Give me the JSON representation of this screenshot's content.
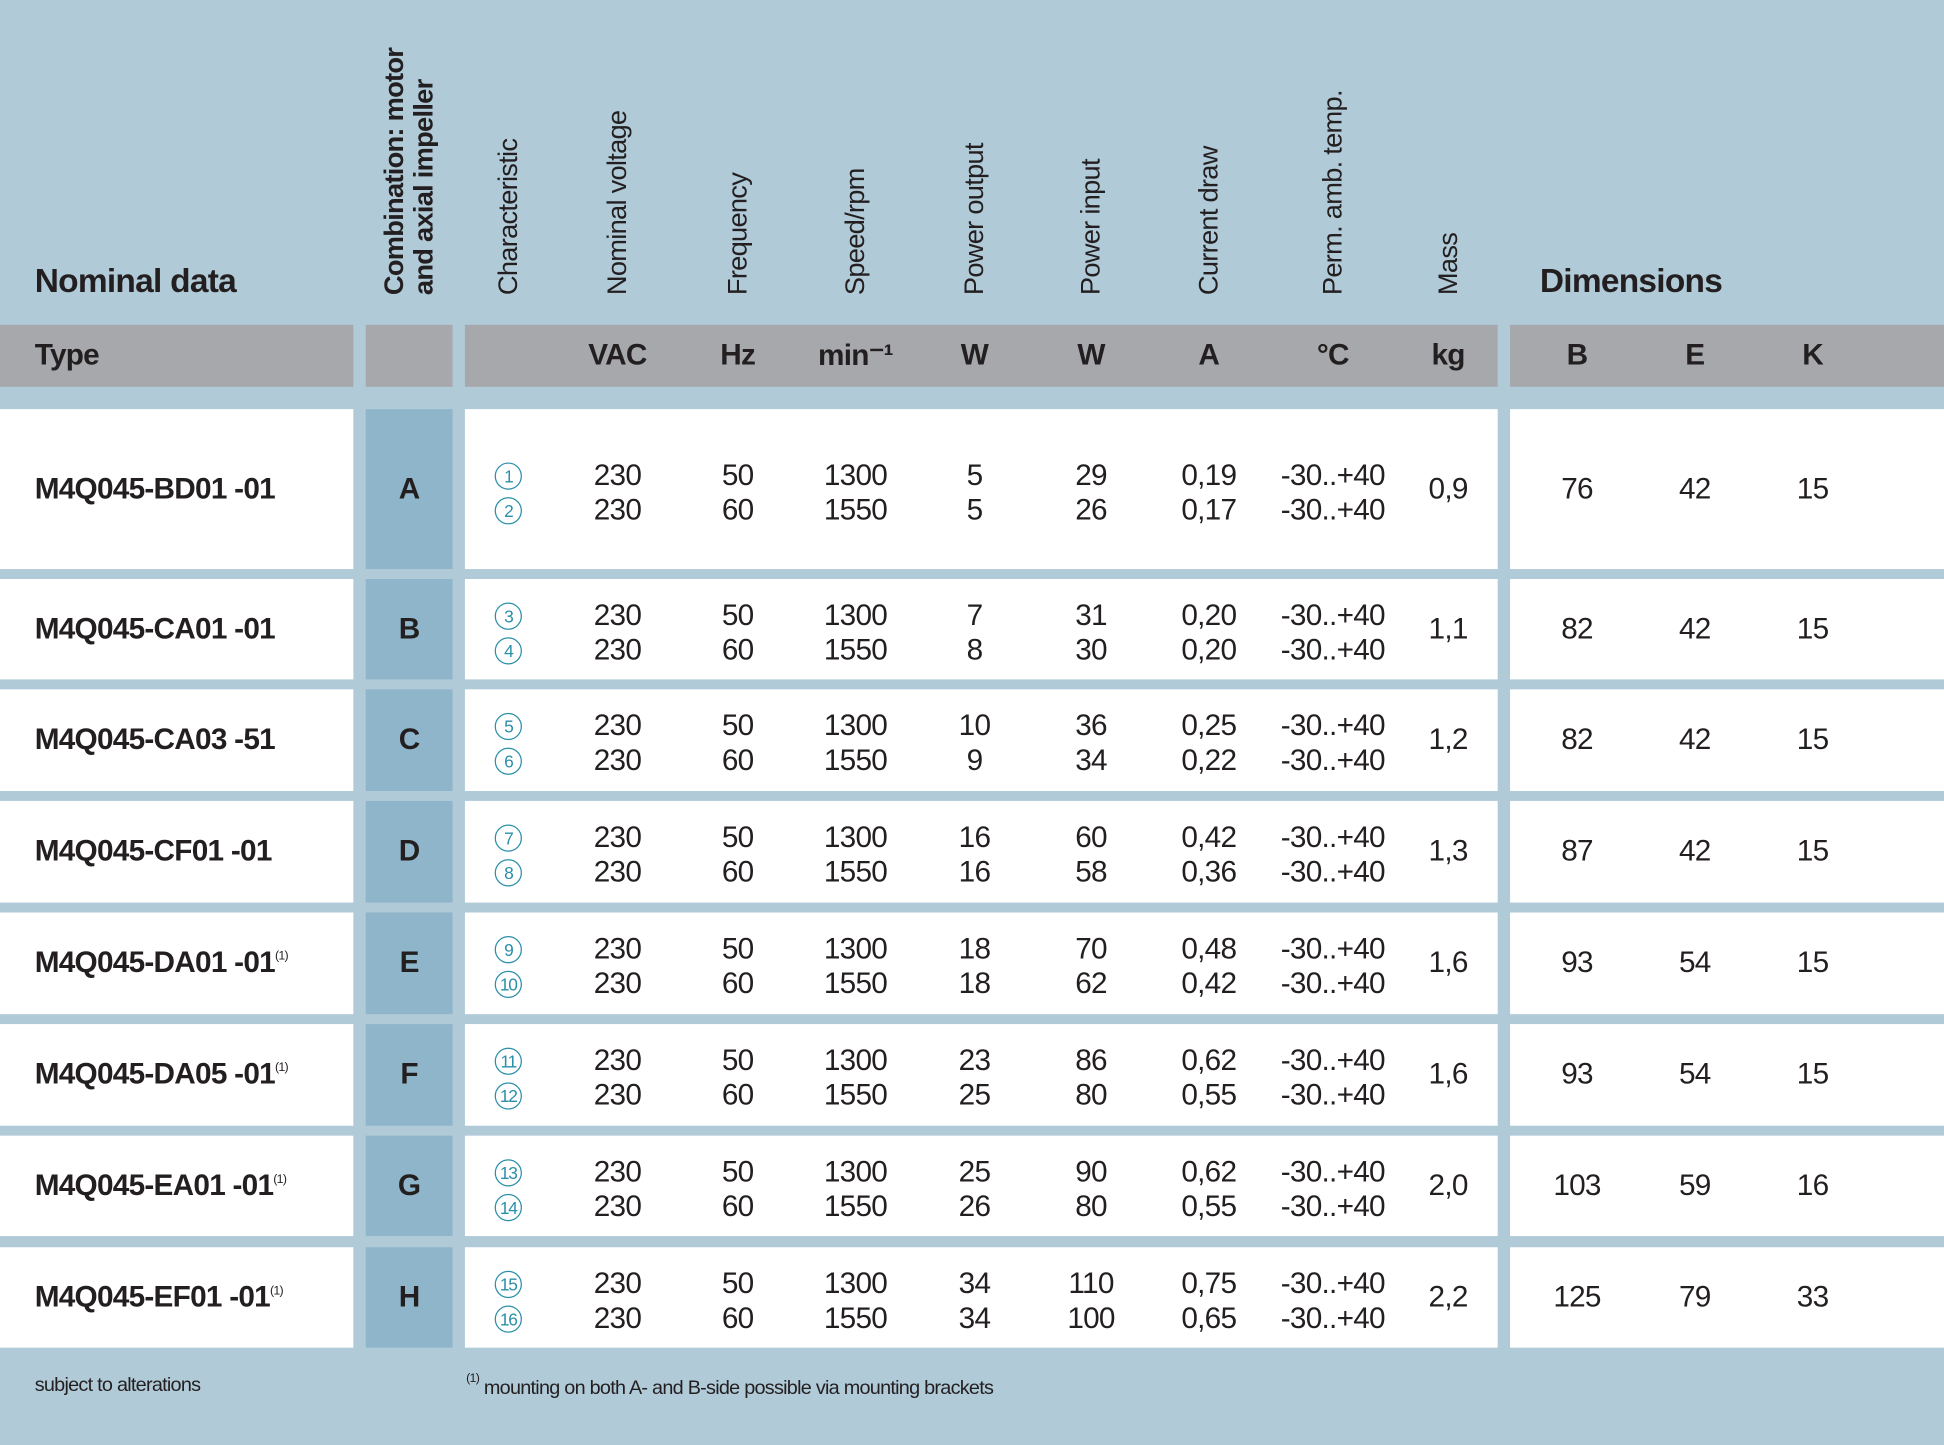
{
  "header": {
    "title": "Nominal data",
    "dimensions": "Dimensions",
    "type_label": "Type",
    "columns": [
      {
        "label": "Combination: motor and axial impeller"
      },
      {
        "label": "Characteristic"
      },
      {
        "label": "Nominal voltage",
        "unit": "VAC"
      },
      {
        "label": "Frequency",
        "unit": "Hz"
      },
      {
        "label": "Speed/rpm",
        "unit": "min⁻¹"
      },
      {
        "label": "Power output",
        "unit": "W"
      },
      {
        "label": "Power input",
        "unit": "W"
      },
      {
        "label": "Current draw",
        "unit": "A"
      },
      {
        "label": "Perm. amb. temp.",
        "unit": "°C"
      },
      {
        "label": "Mass",
        "unit": "kg"
      }
    ],
    "dims": [
      "B",
      "E",
      "K"
    ]
  },
  "rows": [
    {
      "type": "M4Q045-BD01 -01",
      "combination": "A",
      "lines": [
        [
          1,
          230,
          50,
          1300,
          5,
          29,
          "0,19",
          "-30..+40"
        ],
        [
          2,
          230,
          60,
          1550,
          5,
          26,
          "0,17",
          "-30..+40"
        ]
      ],
      "mass": "0,9",
      "dims": [
        76,
        42,
        15
      ]
    },
    {
      "type": "M4Q045-CA01 -01",
      "combination": "B",
      "lines": [
        [
          3,
          230,
          50,
          1300,
          7,
          31,
          "0,20",
          "-30..+40"
        ],
        [
          4,
          230,
          60,
          1550,
          8,
          30,
          "0,20",
          "-30..+40"
        ]
      ],
      "mass": "1,1",
      "dims": [
        82,
        42,
        15
      ]
    },
    {
      "type": "M4Q045-CA03 -51",
      "combination": "C",
      "lines": [
        [
          5,
          230,
          50,
          1300,
          10,
          36,
          "0,25",
          "-30..+40"
        ],
        [
          6,
          230,
          60,
          1550,
          9,
          34,
          "0,22",
          "-30..+40"
        ]
      ],
      "mass": "1,2",
      "dims": [
        82,
        42,
        15
      ]
    },
    {
      "type": "M4Q045-CF01 -01",
      "combination": "D",
      "lines": [
        [
          7,
          230,
          50,
          1300,
          16,
          60,
          "0,42",
          "-30..+40"
        ],
        [
          8,
          230,
          60,
          1550,
          16,
          58,
          "0,36",
          "-30..+40"
        ]
      ],
      "mass": "1,3",
      "dims": [
        87,
        42,
        15
      ]
    },
    {
      "type": "M4Q045-DA01 -01",
      "note": "(1)",
      "combination": "E",
      "lines": [
        [
          9,
          230,
          50,
          1300,
          18,
          70,
          "0,48",
          "-30..+40"
        ],
        [
          10,
          230,
          60,
          1550,
          18,
          62,
          "0,42",
          "-30..+40"
        ]
      ],
      "mass": "1,6",
      "dims": [
        93,
        54,
        15
      ]
    },
    {
      "type": "M4Q045-DA05 -01",
      "note": "(1)",
      "combination": "F",
      "lines": [
        [
          11,
          230,
          50,
          1300,
          23,
          86,
          "0,62",
          "-30..+40"
        ],
        [
          12,
          230,
          60,
          1550,
          25,
          80,
          "0,55",
          "-30..+40"
        ]
      ],
      "mass": "1,6",
      "dims": [
        93,
        54,
        15
      ]
    },
    {
      "type": "M4Q045-EA01 -01",
      "note": "(1)",
      "combination": "G",
      "lines": [
        [
          13,
          230,
          50,
          1300,
          25,
          90,
          "0,62",
          "-30..+40"
        ],
        [
          14,
          230,
          60,
          1550,
          26,
          80,
          "0,55",
          "-30..+40"
        ]
      ],
      "mass": "2,0",
      "dims": [
        103,
        59,
        16
      ]
    },
    {
      "type": "M4Q045-EF01 -01",
      "note": "(1)",
      "combination": "H",
      "lines": [
        [
          15,
          230,
          50,
          1300,
          34,
          110,
          "0,75",
          "-30..+40"
        ],
        [
          16,
          230,
          60,
          1550,
          34,
          100,
          "0,65",
          "-30..+40"
        ]
      ],
      "mass": "2,2",
      "dims": [
        125,
        79,
        33
      ]
    }
  ],
  "footer": {
    "left": "subject to alterations",
    "note_mark": "(1)",
    "note": "mounting on both A- and B-side possible via mounting brackets"
  }
}
